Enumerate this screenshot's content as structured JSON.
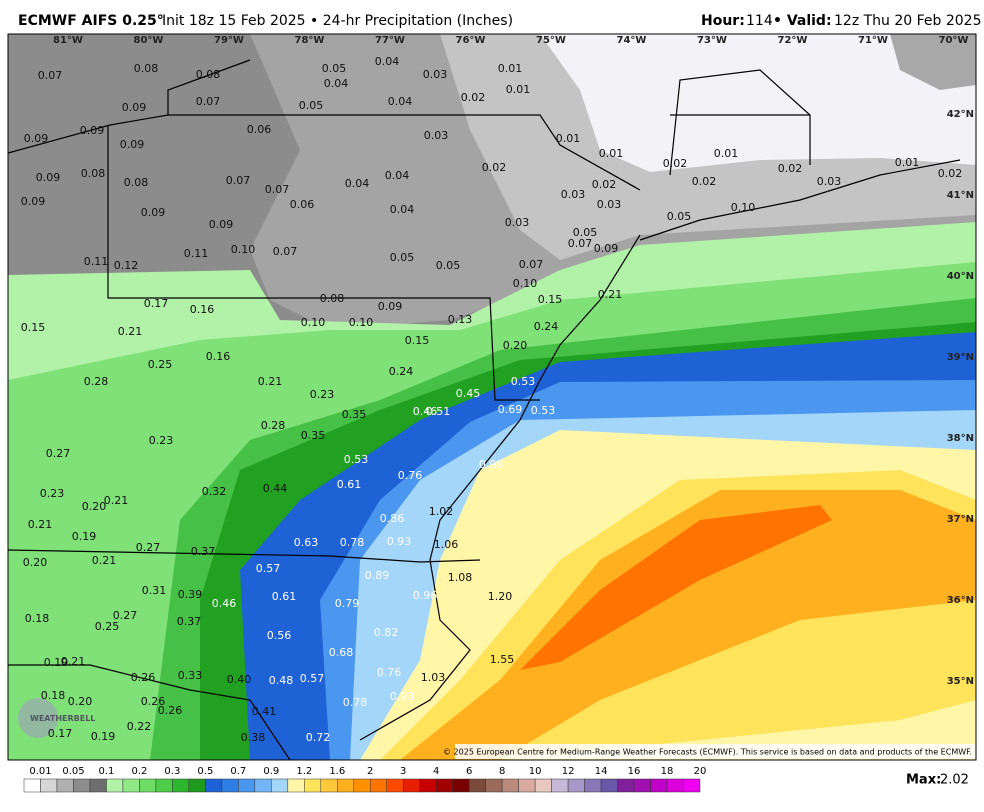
{
  "header": {
    "model": "ECMWF AIFS 0.25°",
    "run": "Init 18z 15 Feb 2025 • 24-hr Precipitation (Inches)",
    "hour_label": "Hour:",
    "hour": "114",
    "valid_label": "• Valid:",
    "valid": "12z Thu 20 Feb 2025"
  },
  "map": {
    "lon_labels": [
      "81°W",
      "80°W",
      "79°W",
      "78°W",
      "77°W",
      "76°W",
      "75°W",
      "74°W",
      "73°W",
      "72°W",
      "71°W",
      "70°W"
    ],
    "lat_labels": [
      "42°N",
      "41°N",
      "40°N",
      "39°N",
      "38°N",
      "37°N",
      "36°N",
      "35°N"
    ],
    "values": [
      "0.07",
      "0.08",
      "0.08",
      "0.07",
      "0.09",
      "0.05",
      "0.04",
      "0.04",
      "0.03",
      "0.01",
      "0.01",
      "0.04",
      "0.02",
      "0.05",
      "0.06",
      "0.03",
      "0.01",
      "0.01",
      "0.02",
      "0.01",
      "0.02",
      "0.03",
      "0.01",
      "0.02",
      "0.02",
      "0.10",
      "0.05",
      "0.03",
      "0.02",
      "0.03",
      "0.02",
      "0.03",
      "0.09",
      "0.09",
      "0.09",
      "0.08",
      "0.09",
      "0.09",
      "0.08",
      "0.07",
      "0.07",
      "0.06",
      "0.04",
      "0.04",
      "0.04",
      "0.09",
      "0.09",
      "0.10",
      "0.07",
      "0.05",
      "0.05",
      "0.07",
      "0.05",
      "0.07",
      "0.09",
      "0.11",
      "0.12",
      "0.11",
      "0.10",
      "0.15",
      "0.21",
      "0.08",
      "0.09",
      "0.10",
      "0.10",
      "0.17",
      "0.16",
      "0.15",
      "0.21",
      "0.16",
      "0.24",
      "0.20",
      "0.15",
      "0.13",
      "0.28",
      "0.25",
      "0.21",
      "0.23",
      "0.24",
      "0.53",
      "0.45",
      "0.69",
      "0.53",
      "0.35",
      "0.46",
      "0.51",
      "0.27",
      "0.23",
      "0.28",
      "0.35",
      "0.53",
      "0.61",
      "0.76",
      "0.98",
      "0.23",
      "0.21",
      "0.20",
      "0.32",
      "0.44",
      "0.86",
      "1.02",
      "0.21",
      "0.19",
      "0.27",
      "0.37",
      "0.63",
      "0.78",
      "0.93",
      "1.06",
      "0.20",
      "0.21",
      "0.57",
      "0.89",
      "1.08",
      "0.31",
      "0.39",
      "0.46",
      "0.61",
      "0.79",
      "0.96",
      "1.20",
      "0.18",
      "0.27",
      "0.25",
      "0.37",
      "0.56",
      "0.82",
      "0.68",
      "0.19",
      "0.21",
      "0.26",
      "0.33",
      "0.40",
      "0.48",
      "0.57",
      "0.76",
      "1.03",
      "1.55",
      "0.18",
      "0.20",
      "0.26",
      "0.26",
      "0.93",
      "0.78",
      "0.41",
      "0.17",
      "0.19",
      "0.22",
      "0.38",
      "0.72"
    ]
  },
  "colorbar": {
    "labels": [
      "0.01",
      "0.05",
      "0.1",
      "0.2",
      "0.3",
      "0.5",
      "0.7",
      "0.9",
      "1.2",
      "1.6",
      "2",
      "3",
      "4",
      "6",
      "8",
      "10",
      "12",
      "14",
      "16",
      "18",
      "20"
    ],
    "max_label": "Max:",
    "max_value": "2.02"
  },
  "credit": "© 2025 European Centre for Medium-Range Weather Forecasts (ECMWF). This service is based on data and products of the ECMWF.",
  "logo": "WEATHERBELL"
}
